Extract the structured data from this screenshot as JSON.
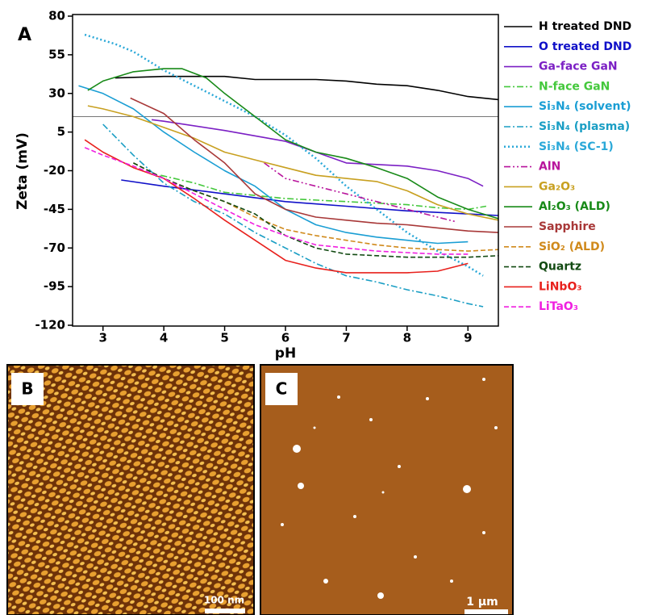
{
  "chart_data": {
    "type": "line",
    "panel_label": "A",
    "x_label": "pH",
    "y_label": "Zeta (mV)",
    "xlim": [
      2.5,
      9.5
    ],
    "xticks": [
      3,
      4,
      5,
      6,
      7,
      8,
      9
    ],
    "ylim": [
      -120,
      80
    ],
    "yticks": [
      80,
      55,
      30,
      5,
      -20,
      -45,
      -70,
      -95,
      -120
    ],
    "reference_line": 15,
    "series": [
      {
        "name": "H treated DND",
        "color": "#000000",
        "linestyle": "solid",
        "x": [
          3.2,
          4,
          5,
          5.5,
          6,
          6.5,
          7,
          7.5,
          8,
          8.5,
          9,
          9.5
        ],
        "values": [
          40,
          41,
          41,
          39,
          39,
          39,
          38,
          36,
          35,
          32,
          28,
          26
        ]
      },
      {
        "name": "O treated DND",
        "color": "#1010c8",
        "linestyle": "solid",
        "x": [
          3.3,
          4,
          5,
          6,
          7,
          8,
          9,
          9.5
        ],
        "values": [
          -26,
          -30,
          -35,
          -40,
          -43,
          -46,
          -48,
          -49
        ]
      },
      {
        "name": "Ga-face GaN",
        "color": "#7b1fc4",
        "linestyle": "solid",
        "x": [
          3.8,
          4,
          5,
          6,
          6.5,
          7,
          7.5,
          8,
          8.5,
          9,
          9.25
        ],
        "values": [
          13,
          12,
          6,
          -1,
          -8,
          -15,
          -16,
          -17,
          -20,
          -25,
          -30
        ]
      },
      {
        "name": "N-face GaN",
        "color": "#44c83c",
        "linestyle": "dashdot",
        "x": [
          3.95,
          4.5,
          5,
          6,
          7,
          8,
          8.5,
          9,
          9.3
        ],
        "values": [
          -23,
          -28,
          -34,
          -38,
          -40,
          -42,
          -44,
          -45,
          -43
        ]
      },
      {
        "name": "Si₃N₄ (solvent)",
        "color": "#1a9ed4",
        "linestyle": "solid",
        "x": [
          2.6,
          3,
          3.5,
          4,
          4.5,
          5,
          5.5,
          6,
          6.5,
          7,
          7.5,
          8,
          8.5,
          9
        ],
        "values": [
          35,
          30,
          20,
          5,
          -8,
          -20,
          -30,
          -45,
          -55,
          -60,
          -63,
          -65,
          -67,
          -66
        ]
      },
      {
        "name": "Si₃N₄ (plasma)",
        "color": "#1a9ec4",
        "linestyle": "dashdot",
        "x": [
          3,
          3.5,
          4,
          4.5,
          5,
          5.5,
          6,
          6.5,
          7,
          7.5,
          8,
          8.5,
          9,
          9.25
        ],
        "values": [
          10,
          -10,
          -28,
          -40,
          -48,
          -60,
          -70,
          -80,
          -88,
          -92,
          -97,
          -101,
          -106,
          -108
        ]
      },
      {
        "name": "Si₃N₄ (SC-1)",
        "color": "#2aa8d8",
        "linestyle": "dotted",
        "x": [
          2.7,
          3.2,
          3.5,
          4,
          4.5,
          5,
          5.5,
          6,
          6.5,
          7,
          7.5,
          8,
          8.5,
          9,
          9.25
        ],
        "values": [
          68,
          62,
          57,
          45,
          35,
          25,
          15,
          3,
          -12,
          -30,
          -45,
          -60,
          -72,
          -82,
          -88
        ]
      },
      {
        "name": "AlN",
        "color": "#b8149c",
        "linestyle": "dashdotdot",
        "x": [
          5.65,
          6,
          6.5,
          7,
          7.5,
          8,
          8.5,
          8.8
        ],
        "values": [
          -15,
          -25,
          -30,
          -35,
          -40,
          -45,
          -50,
          -53
        ]
      },
      {
        "name": "Ga₂O₃",
        "color": "#c8a020",
        "linestyle": "solid",
        "x": [
          2.75,
          3,
          3.5,
          4,
          4.5,
          5,
          5.5,
          6,
          6.5,
          7,
          7.5,
          8,
          8.5,
          9,
          9.5
        ],
        "values": [
          22,
          20,
          15,
          8,
          1,
          -8,
          -13,
          -18,
          -23,
          -25,
          -27,
          -33,
          -42,
          -48,
          -52
        ]
      },
      {
        "name": "Al₂O₃ (ALD)",
        "color": "#188a18",
        "linestyle": "solid",
        "x": [
          2.75,
          3,
          3.5,
          4,
          4.3,
          4.7,
          5,
          5.5,
          6,
          6.5,
          7,
          7.5,
          8,
          8.5,
          9,
          9.5
        ],
        "values": [
          32,
          38,
          44,
          46,
          46,
          40,
          30,
          15,
          0,
          -8,
          -12,
          -18,
          -25,
          -37,
          -45,
          -51
        ]
      },
      {
        "name": "Sapphire",
        "color": "#a83838",
        "linestyle": "solid",
        "x": [
          3.45,
          4,
          4.5,
          5,
          5.5,
          6,
          6.5,
          7,
          7.5,
          8,
          8.5,
          9,
          9.5
        ],
        "values": [
          27,
          17,
          0,
          -15,
          -35,
          -45,
          -50,
          -52,
          -54,
          -55,
          -57,
          -59,
          -60
        ]
      },
      {
        "name": "SiO₂ (ALD)",
        "color": "#d08a1c",
        "linestyle": "dashed",
        "x": [
          3.5,
          4,
          4.5,
          5,
          5.5,
          6,
          6.5,
          7,
          7.5,
          8,
          8.5,
          9,
          9.5
        ],
        "values": [
          -15,
          -25,
          -33,
          -40,
          -50,
          -58,
          -62,
          -65,
          -68,
          -70,
          -71,
          -72,
          -71
        ]
      },
      {
        "name": "Quartz",
        "color": "#124a12",
        "linestyle": "dashed",
        "x": [
          3.5,
          4,
          4.5,
          5,
          5.5,
          6,
          6.5,
          7,
          7.5,
          8,
          8.5,
          9,
          9.5
        ],
        "values": [
          -15,
          -25,
          -33,
          -40,
          -48,
          -62,
          -70,
          -74,
          -75,
          -76,
          -76,
          -76,
          -75
        ]
      },
      {
        "name": "LiNbO₃",
        "color": "#e8201c",
        "linestyle": "solid",
        "x": [
          2.7,
          3,
          3.5,
          4,
          4.5,
          5,
          5.5,
          6,
          6.5,
          7,
          7.5,
          8,
          8.5,
          9
        ],
        "values": [
          0,
          -8,
          -18,
          -25,
          -38,
          -52,
          -65,
          -78,
          -83,
          -86,
          -86,
          -86,
          -85,
          -80
        ]
      },
      {
        "name": "LiTaO₃",
        "color": "#f020e0",
        "linestyle": "dashed",
        "x": [
          2.7,
          3,
          3.5,
          4,
          4.5,
          5,
          5.5,
          6,
          6.5,
          7,
          7.5,
          8,
          8.5,
          9
        ],
        "values": [
          -5,
          -10,
          -17,
          -25,
          -35,
          -45,
          -55,
          -62,
          -68,
          -70,
          -72,
          -73,
          -74,
          -74
        ]
      }
    ]
  },
  "images": [
    {
      "label": "B",
      "scale_bar": "100 nm"
    },
    {
      "label": "C",
      "scale_bar": "1 μm"
    }
  ]
}
